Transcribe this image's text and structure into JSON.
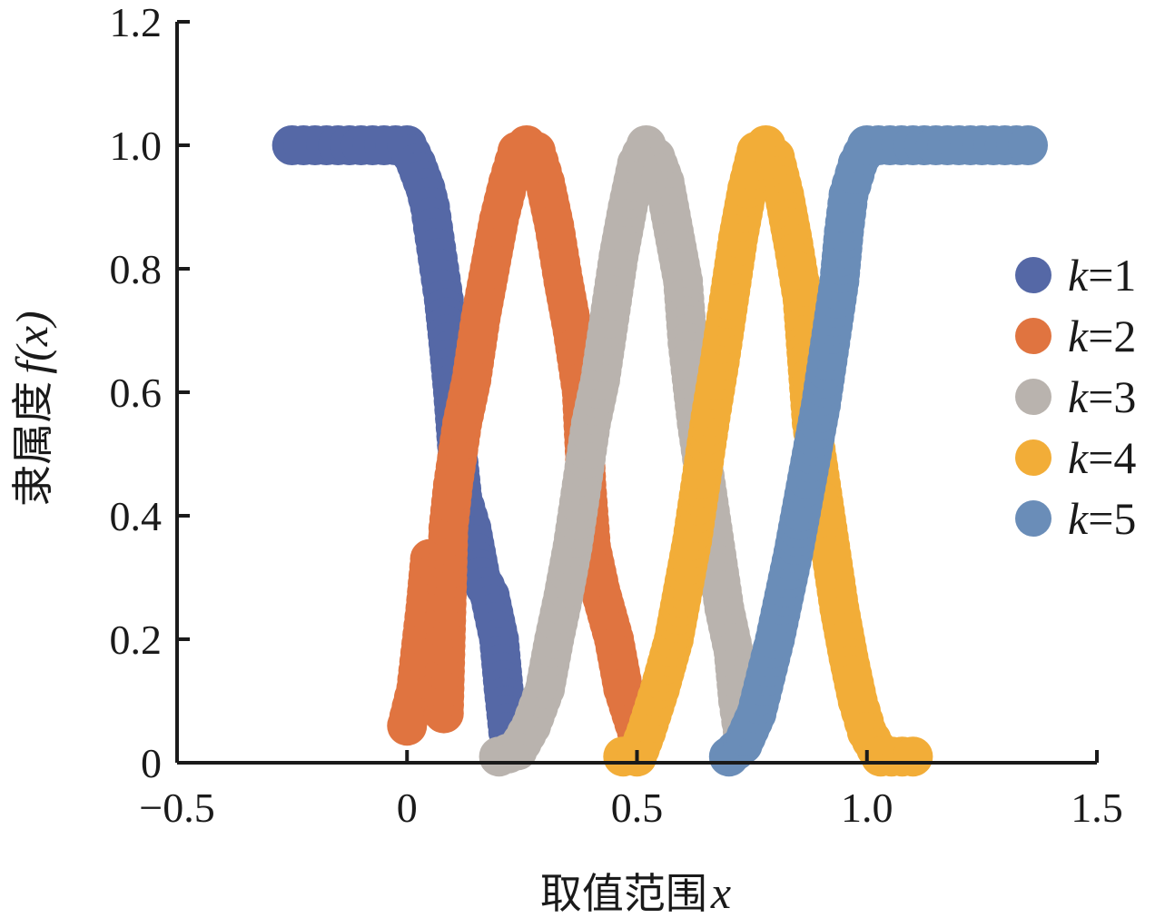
{
  "chart_data": {
    "type": "scatter",
    "xlabel": "取值范围",
    "xlabel_var": "x",
    "ylabel": "隶属度",
    "ylabel_var": "f(x)",
    "xlim": [
      -0.5,
      1.5
    ],
    "ylim": [
      0,
      1.2
    ],
    "xticks": [
      {
        "value": -0.5,
        "label": "−0.5"
      },
      {
        "value": 0,
        "label": "0"
      },
      {
        "value": 0.5,
        "label": "0.5"
      },
      {
        "value": 1.0,
        "label": "1.0"
      },
      {
        "value": 1.5,
        "label": "1.5"
      }
    ],
    "yticks": [
      {
        "value": 0,
        "label": "0"
      },
      {
        "value": 0.2,
        "label": "0.2"
      },
      {
        "value": 0.4,
        "label": "0.4"
      },
      {
        "value": 0.6,
        "label": "0.6"
      },
      {
        "value": 0.8,
        "label": "0.8"
      },
      {
        "value": 1.0,
        "label": "1.0"
      },
      {
        "value": 1.2,
        "label": "1.2"
      }
    ],
    "grid": false,
    "legend_position": "right",
    "series": [
      {
        "name": "k=1",
        "legend_var": "k",
        "legend_eq": "=1",
        "color": "#5568a6",
        "points": [
          [
            -0.25,
            1.0
          ],
          [
            -0.2,
            1.0
          ],
          [
            -0.15,
            1.0
          ],
          [
            -0.1,
            1.0
          ],
          [
            -0.05,
            1.0
          ],
          [
            0.0,
            1.0
          ],
          [
            0.02,
            0.97
          ],
          [
            0.04,
            0.93
          ],
          [
            0.05,
            0.9
          ],
          [
            0.06,
            0.85
          ],
          [
            0.07,
            0.8
          ],
          [
            0.08,
            0.75
          ],
          [
            0.09,
            0.68
          ],
          [
            0.1,
            0.6
          ],
          [
            0.11,
            0.5
          ],
          [
            0.12,
            0.43
          ],
          [
            0.14,
            0.38
          ],
          [
            0.16,
            0.3
          ],
          [
            0.18,
            0.27
          ],
          [
            0.2,
            0.2
          ],
          [
            0.21,
            0.12
          ],
          [
            0.22,
            0.05
          ],
          [
            0.23,
            0.02
          ]
        ]
      },
      {
        "name": "k=2",
        "legend_var": "k",
        "legend_eq": "=2",
        "color": "#e07440",
        "points": [
          [
            0.0,
            0.06
          ],
          [
            0.02,
            0.12
          ],
          [
            0.04,
            0.25
          ],
          [
            0.05,
            0.33
          ],
          [
            0.06,
            0.2
          ],
          [
            0.08,
            0.08
          ],
          [
            0.09,
            0.38
          ],
          [
            0.1,
            0.45
          ],
          [
            0.12,
            0.55
          ],
          [
            0.14,
            0.62
          ],
          [
            0.16,
            0.72
          ],
          [
            0.18,
            0.8
          ],
          [
            0.2,
            0.88
          ],
          [
            0.22,
            0.94
          ],
          [
            0.24,
            0.99
          ],
          [
            0.26,
            1.0
          ],
          [
            0.28,
            0.99
          ],
          [
            0.3,
            0.94
          ],
          [
            0.32,
            0.87
          ],
          [
            0.34,
            0.78
          ],
          [
            0.36,
            0.7
          ],
          [
            0.38,
            0.6
          ],
          [
            0.39,
            0.45
          ],
          [
            0.4,
            0.35
          ],
          [
            0.42,
            0.28
          ],
          [
            0.45,
            0.2
          ],
          [
            0.47,
            0.12
          ],
          [
            0.5,
            0.05
          ]
        ]
      },
      {
        "name": "k=3",
        "legend_var": "k",
        "legend_eq": "=3",
        "color": "#b9b3ae",
        "points": [
          [
            0.2,
            0.01
          ],
          [
            0.24,
            0.02
          ],
          [
            0.27,
            0.06
          ],
          [
            0.3,
            0.12
          ],
          [
            0.32,
            0.2
          ],
          [
            0.34,
            0.27
          ],
          [
            0.36,
            0.35
          ],
          [
            0.38,
            0.45
          ],
          [
            0.4,
            0.55
          ],
          [
            0.42,
            0.62
          ],
          [
            0.44,
            0.72
          ],
          [
            0.46,
            0.82
          ],
          [
            0.48,
            0.9
          ],
          [
            0.5,
            0.97
          ],
          [
            0.52,
            1.0
          ],
          [
            0.54,
            0.98
          ],
          [
            0.56,
            0.94
          ],
          [
            0.58,
            0.86
          ],
          [
            0.6,
            0.78
          ],
          [
            0.61,
            0.68
          ],
          [
            0.63,
            0.55
          ],
          [
            0.65,
            0.45
          ],
          [
            0.67,
            0.35
          ],
          [
            0.69,
            0.25
          ],
          [
            0.71,
            0.18
          ],
          [
            0.72,
            0.1
          ],
          [
            0.73,
            0.05
          ]
        ]
      },
      {
        "name": "k=4",
        "legend_var": "k",
        "legend_eq": "=4",
        "color": "#f2ad38",
        "points": [
          [
            0.47,
            0.01
          ],
          [
            0.5,
            0.01
          ],
          [
            0.52,
            0.05
          ],
          [
            0.55,
            0.12
          ],
          [
            0.58,
            0.2
          ],
          [
            0.6,
            0.28
          ],
          [
            0.62,
            0.36
          ],
          [
            0.64,
            0.46
          ],
          [
            0.66,
            0.56
          ],
          [
            0.68,
            0.65
          ],
          [
            0.7,
            0.75
          ],
          [
            0.72,
            0.85
          ],
          [
            0.74,
            0.93
          ],
          [
            0.76,
            0.99
          ],
          [
            0.78,
            1.0
          ],
          [
            0.8,
            0.98
          ],
          [
            0.82,
            0.92
          ],
          [
            0.84,
            0.84
          ],
          [
            0.86,
            0.75
          ],
          [
            0.87,
            0.65
          ],
          [
            0.88,
            0.55
          ],
          [
            0.9,
            0.45
          ],
          [
            0.92,
            0.35
          ],
          [
            0.94,
            0.25
          ],
          [
            0.96,
            0.17
          ],
          [
            0.98,
            0.1
          ],
          [
            1.0,
            0.05
          ],
          [
            1.03,
            0.01
          ],
          [
            1.1,
            0.01
          ]
        ]
      },
      {
        "name": "k=5",
        "legend_var": "k",
        "legend_eq": "=5",
        "color": "#6a8db8",
        "points": [
          [
            0.7,
            0.01
          ],
          [
            0.73,
            0.03
          ],
          [
            0.76,
            0.08
          ],
          [
            0.78,
            0.14
          ],
          [
            0.8,
            0.2
          ],
          [
            0.82,
            0.27
          ],
          [
            0.84,
            0.34
          ],
          [
            0.86,
            0.42
          ],
          [
            0.88,
            0.5
          ],
          [
            0.9,
            0.58
          ],
          [
            0.92,
            0.68
          ],
          [
            0.94,
            0.78
          ],
          [
            0.95,
            0.86
          ],
          [
            0.96,
            0.92
          ],
          [
            0.98,
            0.97
          ],
          [
            1.0,
            1.0
          ],
          [
            1.05,
            1.0
          ],
          [
            1.1,
            1.0
          ],
          [
            1.15,
            1.0
          ],
          [
            1.2,
            1.0
          ],
          [
            1.25,
            1.0
          ],
          [
            1.3,
            1.0
          ],
          [
            1.35,
            1.0
          ]
        ]
      }
    ]
  }
}
